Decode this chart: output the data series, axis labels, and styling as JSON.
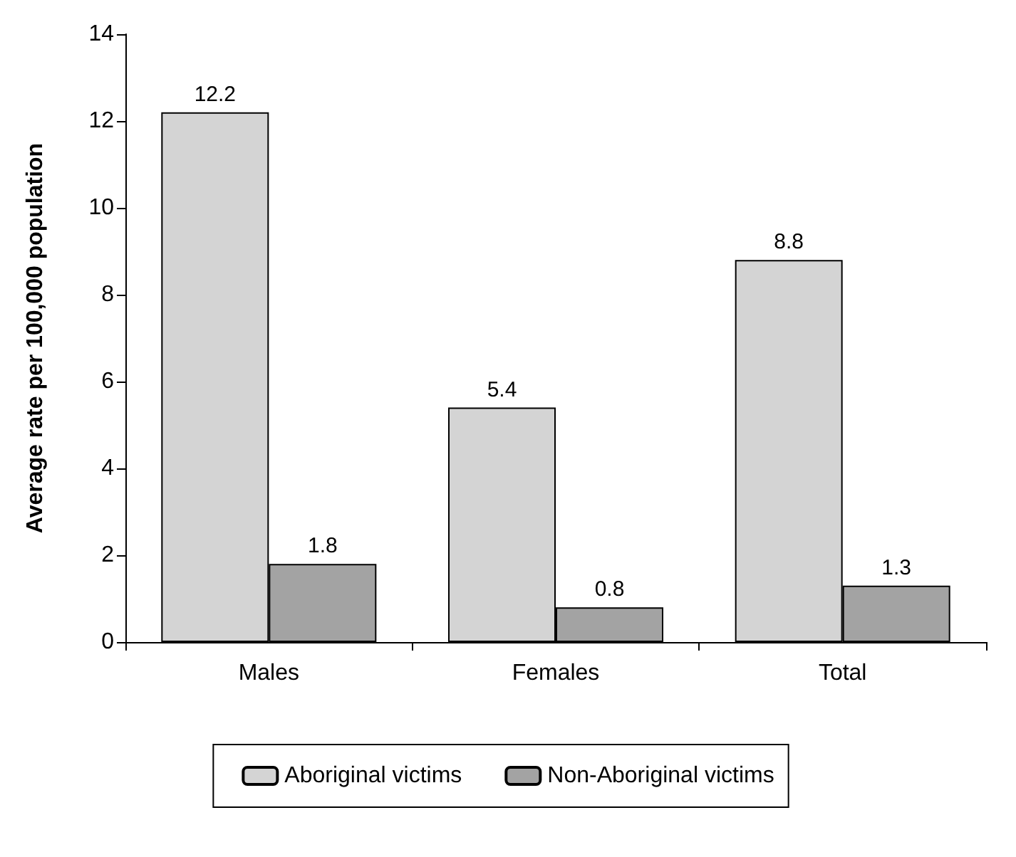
{
  "chart_data": {
    "type": "bar",
    "ylabel": "Average rate per 100,000 population",
    "categories": [
      "Males",
      "Females",
      "Total"
    ],
    "series": [
      {
        "name": "Aboriginal victims",
        "color": "#d4d4d4",
        "values": [
          12.2,
          5.4,
          8.8
        ]
      },
      {
        "name": "Non-Aboriginal victims",
        "color": "#a3a3a3",
        "values": [
          1.8,
          0.8,
          1.3
        ]
      }
    ],
    "ylim": [
      0,
      14
    ],
    "yticks": [
      0,
      2,
      4,
      6,
      8,
      10,
      12,
      14
    ],
    "grid": false,
    "legend": "bottom",
    "data_labels": true
  }
}
